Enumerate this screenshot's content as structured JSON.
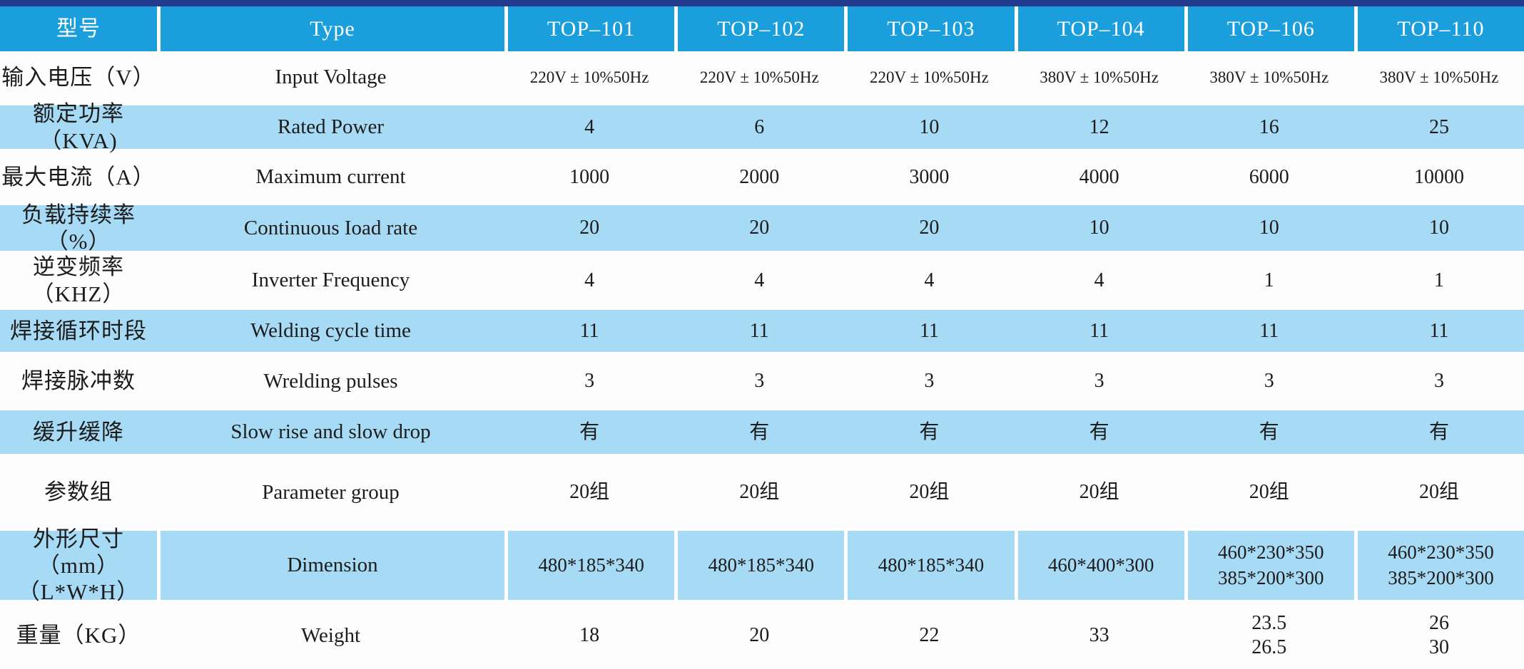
{
  "colors": {
    "top_border": "#223b8f",
    "header_blue": "#1b9fdc",
    "band_blue": "#a7daf4",
    "text_dark": "#1c1c1c",
    "header_text": "#ffffff"
  },
  "table": {
    "header": {
      "label_zh": "型号",
      "label_en": "Type",
      "models": [
        "TOP–101",
        "TOP–102",
        "TOP–103",
        "TOP–104",
        "TOP–106",
        "TOP–110"
      ]
    },
    "rows": [
      {
        "zh": "输入电压（V）",
        "en": "Input Voltage",
        "values": [
          "220V ± 10%50Hz",
          "220V ± 10%50Hz",
          "220V ± 10%50Hz",
          "380V ± 10%50Hz",
          "380V ± 10%50Hz",
          "380V ± 10%50Hz"
        ]
      },
      {
        "zh": "额定功率（KVA)",
        "en": "Rated Power",
        "values": [
          "4",
          "6",
          "10",
          "12",
          "16",
          "25"
        ]
      },
      {
        "zh": "最大电流（A）",
        "en": "Maximum current",
        "values": [
          "1000",
          "2000",
          "3000",
          "4000",
          "6000",
          "10000"
        ]
      },
      {
        "zh": "负载持续率（%）",
        "en": "Continuous Ioad rate",
        "values": [
          "20",
          "20",
          "20",
          "10",
          "10",
          "10"
        ]
      },
      {
        "zh": "逆变频率（KHZ）",
        "en": "Inverter Frequency",
        "values": [
          "4",
          "4",
          "4",
          "4",
          "1",
          "1"
        ]
      },
      {
        "zh": "焊接循环时段",
        "en": "Welding cycle time",
        "values": [
          "11",
          "11",
          "11",
          "11",
          "11",
          "11"
        ]
      },
      {
        "zh": "焊接脉冲数",
        "en": "Wrelding pulses",
        "values": [
          "3",
          "3",
          "3",
          "3",
          "3",
          "3"
        ]
      },
      {
        "zh": "缓升缓降",
        "en": "Slow rise and slow drop",
        "values": [
          "有",
          "有",
          "有",
          "有",
          "有",
          "有"
        ]
      },
      {
        "zh": "参数组",
        "en": "Parameter group",
        "values": [
          "20组",
          "20组",
          "20组",
          "20组",
          "20组",
          "20组"
        ]
      },
      {
        "zh": [
          "外形尺寸（mm）",
          "（L*W*H）"
        ],
        "en": "Dimension",
        "values": [
          "480*185*340",
          "480*185*340",
          "480*185*340",
          "460*400*300",
          [
            "460*230*350",
            "385*200*300"
          ],
          [
            "460*230*350",
            "385*200*300"
          ]
        ]
      },
      {
        "zh": "重量（KG）",
        "en": "Weight",
        "values": [
          "18",
          "20",
          "22",
          "33",
          [
            "23.5",
            "26.5"
          ],
          [
            "26",
            "30"
          ]
        ]
      }
    ]
  }
}
